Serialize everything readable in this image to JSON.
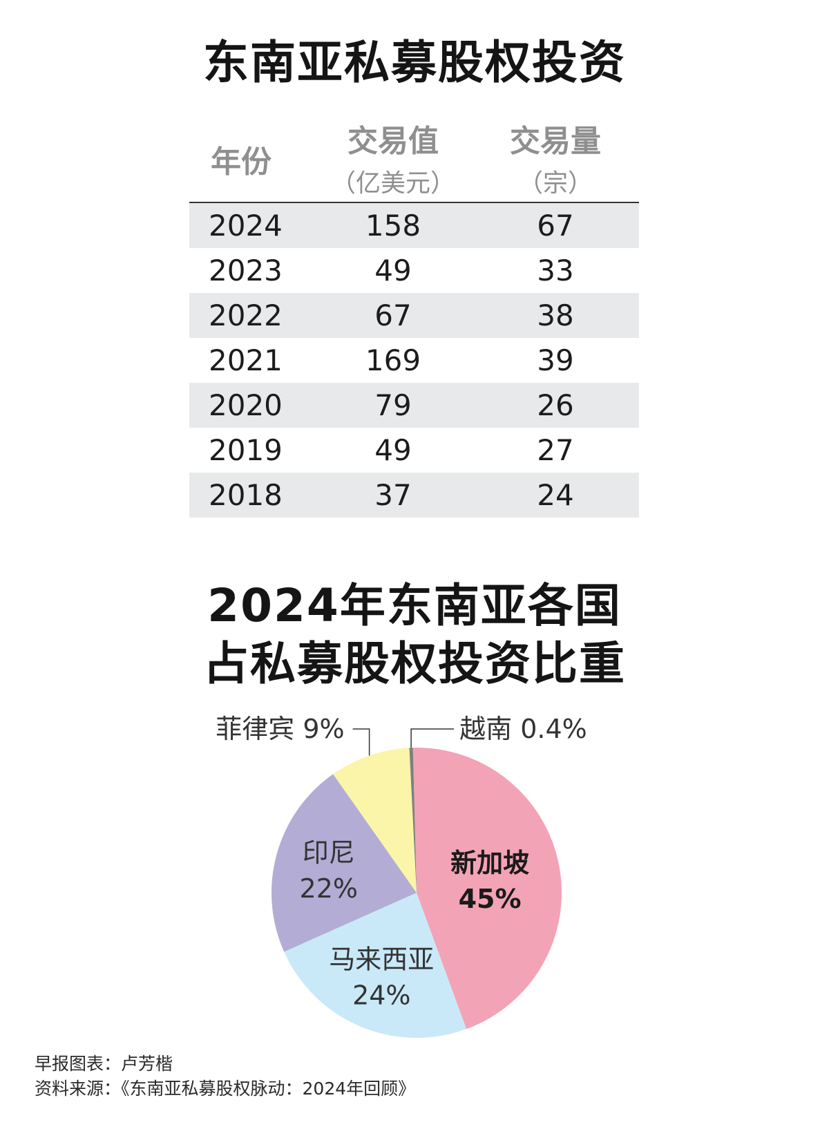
{
  "table": {
    "title": "东南亚私募股权投资",
    "headers": {
      "year": "年份",
      "value": "交易值",
      "value_unit": "（亿美元）",
      "volume": "交易量",
      "volume_unit": "（宗）"
    },
    "rows": [
      {
        "year": "2024",
        "value": "158",
        "volume": "67"
      },
      {
        "year": "2023",
        "value": "49",
        "volume": "33"
      },
      {
        "year": "2022",
        "value": "67",
        "volume": "38"
      },
      {
        "year": "2021",
        "value": "169",
        "volume": "39"
      },
      {
        "year": "2020",
        "value": "79",
        "volume": "26"
      },
      {
        "year": "2019",
        "value": "49",
        "volume": "27"
      },
      {
        "year": "2018",
        "value": "37",
        "volume": "24"
      }
    ]
  },
  "chart_data": {
    "type": "pie",
    "title": "2024年东南亚各国",
    "subtitle": "占私募股权投资比重",
    "slices": [
      {
        "label": "新加坡",
        "value": 45,
        "value_label": "45%",
        "color": "#f3a3b6"
      },
      {
        "label": "马来西亚",
        "value": 24,
        "value_label": "24%",
        "color": "#c9e9f8"
      },
      {
        "label": "印尼",
        "value": 22,
        "value_label": "22%",
        "color": "#b3acd5"
      },
      {
        "label": "菲律宾",
        "value": 9,
        "value_label": "9%",
        "color": "#fbf5a9"
      },
      {
        "label": "越南",
        "value": 0.4,
        "value_label": "0.4%",
        "color": "#808080"
      }
    ]
  },
  "footer": {
    "credit": "早报图表：卢芳楷",
    "source": "资料来源：《东南亚私募股权脉动：2024年回顾》"
  }
}
